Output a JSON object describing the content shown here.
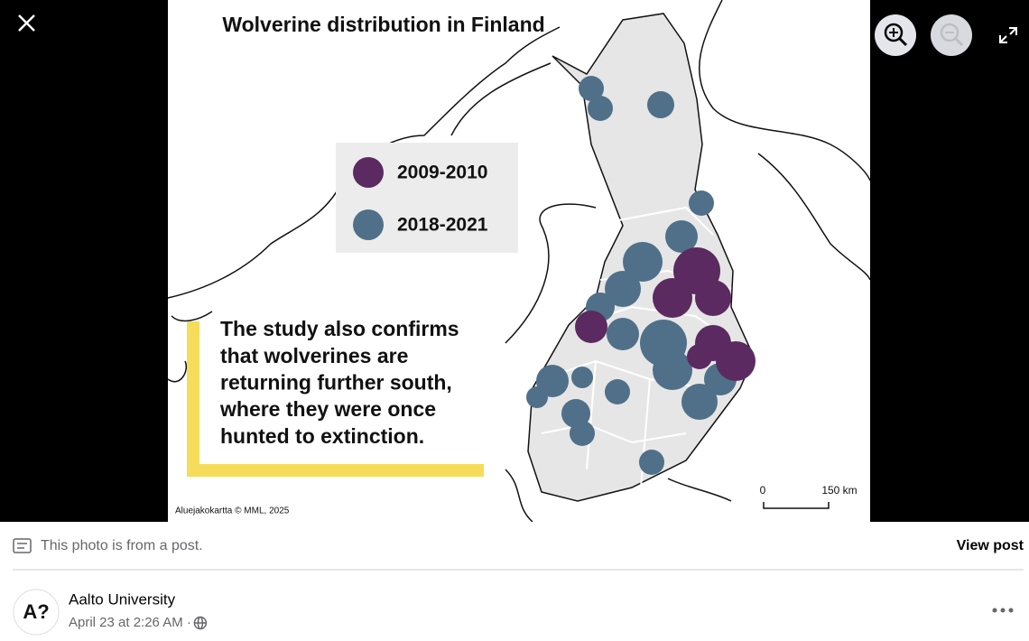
{
  "image": {
    "title": "Wolverine distribution in Finland",
    "legend": [
      "2009-2010",
      "2018-2021"
    ],
    "caption_lines": [
      "The study also confirms",
      "that wolverines are",
      "returning further south,",
      "where they were once",
      "hunted to extinction."
    ],
    "credit": "Aluejakokartta © MML, 2025",
    "scale": [
      "0",
      "150 km"
    ]
  },
  "notice": {
    "text": "This photo is from a post.",
    "link": "View post"
  },
  "post": {
    "avatar": "A?",
    "author": "Aalto University",
    "date": "April 23 at 2:26 AM ·"
  }
}
